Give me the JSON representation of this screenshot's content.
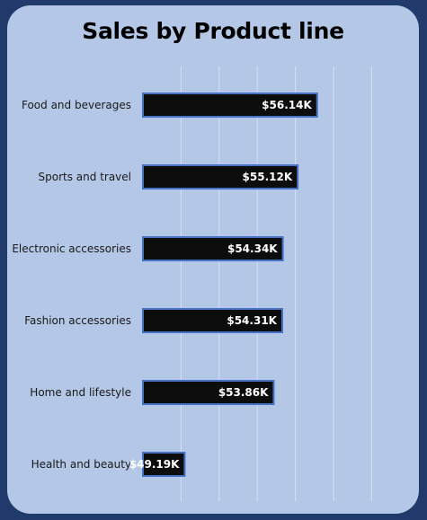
{
  "chart_data": {
    "type": "bar",
    "orientation": "horizontal",
    "title": "Sales by Product line",
    "categories": [
      "Food and beverages",
      "Sports and travel",
      "Electronic accessories",
      "Fashion accessories",
      "Home and lifestyle",
      "Health and beauty"
    ],
    "values": [
      56.14,
      55.12,
      54.34,
      54.31,
      53.86,
      49.19
    ],
    "value_labels": [
      "$56.14K",
      "$55.12K",
      "$54.34K",
      "$54.31K",
      "$53.86K",
      "$49.19K"
    ],
    "unit": "K",
    "xlim": [
      47,
      59
    ],
    "grid": true,
    "legend": "none",
    "colors": {
      "bar_fill": "#0d0d0d",
      "bar_stroke": "#4472c4",
      "background": "#b4c7e7",
      "frame": "#1f3a6b",
      "gridline": "#d6e0f0"
    }
  }
}
